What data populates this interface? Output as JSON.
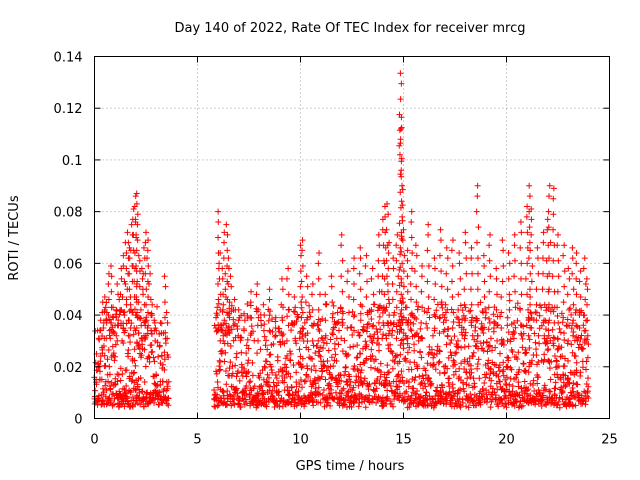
{
  "chart_data": {
    "type": "scatter",
    "title": "Day 140 of 2022, Rate Of TEC Index for receiver mrcg",
    "xlabel": "GPS time / hours",
    "ylabel": "ROTI / TECUs",
    "xlim": [
      0,
      25
    ],
    "ylim": [
      0,
      0.14
    ],
    "xticks": [
      0,
      5,
      10,
      15,
      20,
      25
    ],
    "yticks": [
      0,
      0.02,
      0.04,
      0.06,
      0.08,
      0.1,
      0.12,
      0.14
    ],
    "xtick_labels": [
      "0",
      "5",
      "10",
      "15",
      "20",
      "25"
    ],
    "ytick_labels": [
      "0",
      "0.02",
      "0.04",
      "0.06",
      "0.08",
      "0.1",
      "0.12",
      "0.14"
    ],
    "grid": true,
    "marker": "plus",
    "color": "#ff0000",
    "series": [
      {
        "segments": [
          [
            0,
            3.6
          ],
          [
            5.8,
            24.0
          ]
        ],
        "points": [
          [
            0.1,
            0.025
          ],
          [
            0.2,
            0.031
          ],
          [
            0.3,
            0.038
          ],
          [
            0.4,
            0.045
          ],
          [
            0.5,
            0.047
          ],
          [
            0.6,
            0.041
          ],
          [
            0.7,
            0.056
          ],
          [
            0.8,
            0.059
          ],
          [
            0.9,
            0.043
          ],
          [
            1.0,
            0.036
          ],
          [
            1.1,
            0.052
          ],
          [
            1.2,
            0.046
          ],
          [
            1.3,
            0.058
          ],
          [
            1.4,
            0.063
          ],
          [
            1.5,
            0.068
          ],
          [
            1.6,
            0.072
          ],
          [
            1.7,
            0.066
          ],
          [
            1.8,
            0.075
          ],
          [
            1.9,
            0.081
          ],
          [
            2.0,
            0.086
          ],
          [
            2.05,
            0.087
          ],
          [
            2.1,
            0.079
          ],
          [
            2.2,
            0.061
          ],
          [
            2.3,
            0.058
          ],
          [
            2.4,
            0.066
          ],
          [
            2.5,
            0.072
          ],
          [
            2.6,
            0.069
          ],
          [
            2.7,
            0.056
          ],
          [
            2.8,
            0.044
          ],
          [
            2.9,
            0.038
          ],
          [
            3.0,
            0.034
          ],
          [
            3.2,
            0.037
          ],
          [
            3.4,
            0.055
          ],
          [
            3.5,
            0.041
          ],
          [
            5.9,
            0.039
          ],
          [
            6.0,
            0.08
          ],
          [
            6.1,
            0.064
          ],
          [
            6.2,
            0.058
          ],
          [
            6.3,
            0.072
          ],
          [
            6.4,
            0.075
          ],
          [
            6.5,
            0.062
          ],
          [
            6.6,
            0.055
          ],
          [
            6.8,
            0.046
          ],
          [
            7.0,
            0.042
          ],
          [
            7.3,
            0.038
          ],
          [
            7.6,
            0.049
          ],
          [
            7.9,
            0.052
          ],
          [
            8.2,
            0.044
          ],
          [
            8.5,
            0.05
          ],
          [
            8.8,
            0.039
          ],
          [
            9.1,
            0.054
          ],
          [
            9.4,
            0.058
          ],
          [
            9.7,
            0.047
          ],
          [
            10.0,
            0.067
          ],
          [
            10.1,
            0.069
          ],
          [
            10.3,
            0.055
          ],
          [
            10.6,
            0.052
          ],
          [
            10.9,
            0.064
          ],
          [
            11.2,
            0.048
          ],
          [
            11.5,
            0.055
          ],
          [
            11.8,
            0.041
          ],
          [
            12.0,
            0.071
          ],
          [
            12.3,
            0.057
          ],
          [
            12.6,
            0.062
          ],
          [
            12.9,
            0.066
          ],
          [
            13.2,
            0.063
          ],
          [
            13.5,
            0.058
          ],
          [
            13.8,
            0.071
          ],
          [
            14.0,
            0.077
          ],
          [
            14.1,
            0.082
          ],
          [
            14.2,
            0.083
          ],
          [
            14.3,
            0.068
          ],
          [
            14.5,
            0.062
          ],
          [
            14.7,
            0.071
          ],
          [
            14.85,
            0.1335
          ],
          [
            14.9,
            0.1165
          ],
          [
            14.88,
            0.112
          ],
          [
            15.0,
            0.073
          ],
          [
            15.2,
            0.065
          ],
          [
            15.4,
            0.08
          ],
          [
            15.6,
            0.067
          ],
          [
            15.9,
            0.059
          ],
          [
            16.2,
            0.075
          ],
          [
            16.5,
            0.062
          ],
          [
            16.8,
            0.073
          ],
          [
            17.1,
            0.066
          ],
          [
            17.4,
            0.069
          ],
          [
            17.7,
            0.064
          ],
          [
            18.0,
            0.072
          ],
          [
            18.3,
            0.066
          ],
          [
            18.6,
            0.09
          ],
          [
            18.9,
            0.063
          ],
          [
            19.2,
            0.071
          ],
          [
            19.5,
            0.058
          ],
          [
            19.8,
            0.069
          ],
          [
            20.1,
            0.064
          ],
          [
            20.4,
            0.071
          ],
          [
            20.7,
            0.076
          ],
          [
            21.0,
            0.082
          ],
          [
            21.1,
            0.09
          ],
          [
            21.2,
            0.081
          ],
          [
            21.5,
            0.066
          ],
          [
            21.8,
            0.072
          ],
          [
            22.0,
            0.077
          ],
          [
            22.1,
            0.09
          ],
          [
            22.3,
            0.089
          ],
          [
            22.5,
            0.071
          ],
          [
            22.8,
            0.067
          ],
          [
            23.0,
            0.058
          ],
          [
            23.2,
            0.066
          ],
          [
            23.4,
            0.064
          ],
          [
            23.6,
            0.057
          ],
          [
            23.8,
            0.062
          ],
          [
            23.9,
            0.054
          ]
        ]
      }
    ]
  }
}
